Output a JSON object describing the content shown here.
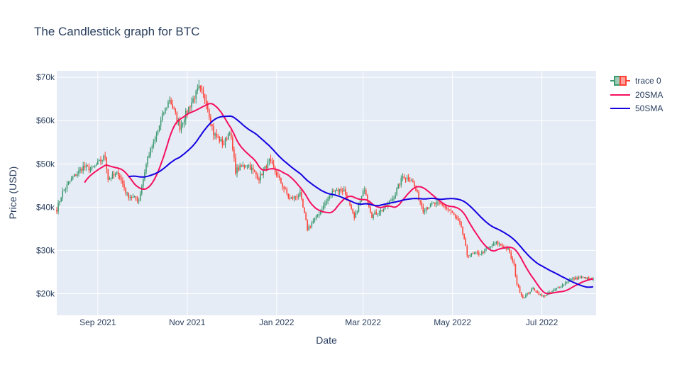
{
  "chart_data": {
    "type": "candlestick",
    "title": "The Candlestick graph for BTC",
    "xlabel": "Date",
    "ylabel": "Price (USD)",
    "x_range": [
      "2021-08-04",
      "2022-08-07"
    ],
    "ylim": [
      15000,
      71500
    ],
    "y_ticks": [
      {
        "value": 20000,
        "label": "$20k"
      },
      {
        "value": 30000,
        "label": "$30k"
      },
      {
        "value": 40000,
        "label": "$40k"
      },
      {
        "value": 50000,
        "label": "$50k"
      },
      {
        "value": 60000,
        "label": "$60k"
      },
      {
        "value": 70000,
        "label": "$70k"
      }
    ],
    "x_ticks": [
      {
        "date": "2021-09-01",
        "label": "Sep 2021"
      },
      {
        "date": "2021-11-01",
        "label": "Nov 2021"
      },
      {
        "date": "2022-01-01",
        "label": "Jan 2022"
      },
      {
        "date": "2022-03-01",
        "label": "Mar 2022"
      },
      {
        "date": "2022-05-01",
        "label": "May 2022"
      },
      {
        "date": "2022-07-01",
        "label": "Jul 2022"
      }
    ],
    "grid": true,
    "legend_position": "right",
    "colors": {
      "increasing": "#3d9970",
      "decreasing": "#ff4136",
      "sma20": "#f50f5f",
      "sma50": "#1400e0",
      "plot_bg": "#e5ecf6",
      "grid": "#ffffff",
      "text": "#2a3f5f"
    },
    "legend": [
      {
        "key": "candles",
        "name": "trace 0"
      },
      {
        "key": "sma20",
        "name": "20SMA"
      },
      {
        "key": "sma50",
        "name": "50SMA"
      }
    ],
    "close_anchors": [
      [
        "2021-08-04",
        39500
      ],
      [
        "2021-08-08",
        43500
      ],
      [
        "2021-08-14",
        46500
      ],
      [
        "2021-08-22",
        49300
      ],
      [
        "2021-08-28",
        48800
      ],
      [
        "2021-09-06",
        51800
      ],
      [
        "2021-09-08",
        46600
      ],
      [
        "2021-09-15",
        47800
      ],
      [
        "2021-09-21",
        42800
      ],
      [
        "2021-09-29",
        41600
      ],
      [
        "2021-10-05",
        51500
      ],
      [
        "2021-10-10",
        55500
      ],
      [
        "2021-10-15",
        61000
      ],
      [
        "2021-10-20",
        65000
      ],
      [
        "2021-10-27",
        58500
      ],
      [
        "2021-11-02",
        63000
      ],
      [
        "2021-11-09",
        67500
      ],
      [
        "2021-11-14",
        64500
      ],
      [
        "2021-11-19",
        57000
      ],
      [
        "2021-11-26",
        54500
      ],
      [
        "2021-11-30",
        57800
      ],
      [
        "2021-12-04",
        48500
      ],
      [
        "2021-12-12",
        50000
      ],
      [
        "2021-12-20",
        46700
      ],
      [
        "2021-12-27",
        50700
      ],
      [
        "2022-01-01",
        47600
      ],
      [
        "2022-01-10",
        41800
      ],
      [
        "2022-01-17",
        43000
      ],
      [
        "2022-01-22",
        35000
      ],
      [
        "2022-01-28",
        37600
      ],
      [
        "2022-02-09",
        44000
      ],
      [
        "2022-02-16",
        43900
      ],
      [
        "2022-02-23",
        37300
      ],
      [
        "2022-03-02",
        44400
      ],
      [
        "2022-03-07",
        38000
      ],
      [
        "2022-03-15",
        39600
      ],
      [
        "2022-03-22",
        42400
      ],
      [
        "2022-03-28",
        47100
      ],
      [
        "2022-04-03",
        46400
      ],
      [
        "2022-04-11",
        39500
      ],
      [
        "2022-04-18",
        40800
      ],
      [
        "2022-04-25",
        40400
      ],
      [
        "2022-05-01",
        38500
      ],
      [
        "2022-05-07",
        35500
      ],
      [
        "2022-05-11",
        29000
      ],
      [
        "2022-05-20",
        29300
      ],
      [
        "2022-05-31",
        31800
      ],
      [
        "2022-06-08",
        30200
      ],
      [
        "2022-06-12",
        26500
      ],
      [
        "2022-06-14",
        22200
      ],
      [
        "2022-06-18",
        19000
      ],
      [
        "2022-06-25",
        21200
      ],
      [
        "2022-07-01",
        19300
      ],
      [
        "2022-07-10",
        20900
      ],
      [
        "2022-07-20",
        23200
      ],
      [
        "2022-07-28",
        23800
      ],
      [
        "2022-08-05",
        23200
      ]
    ]
  }
}
